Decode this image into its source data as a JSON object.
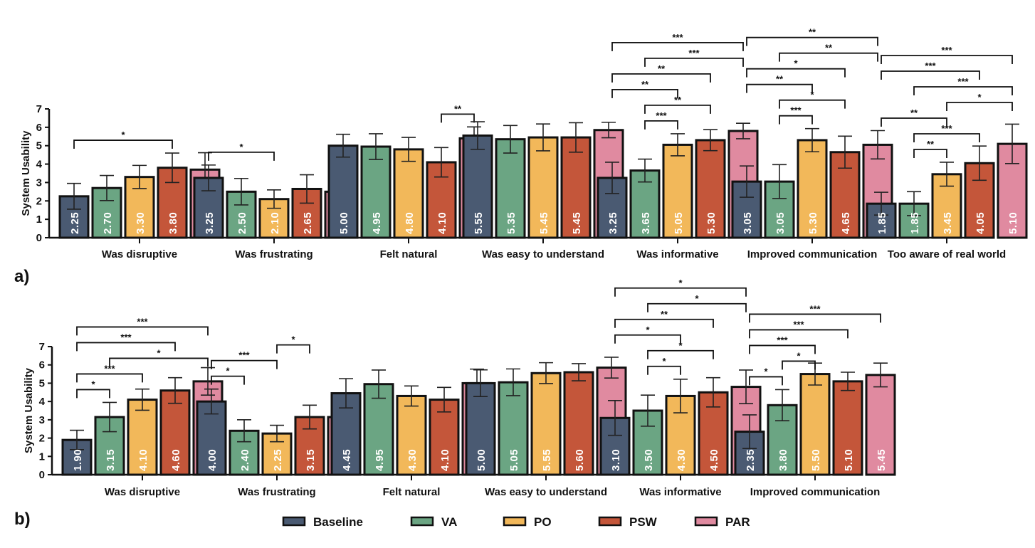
{
  "colors": {
    "Baseline": "#4a5a72",
    "VA": "#6ba583",
    "PO": "#f2b85a",
    "PSW": "#c4563a",
    "PAR": "#e08aa0"
  },
  "legend": [
    "Baseline",
    "VA",
    "PO",
    "PSW",
    "PAR"
  ],
  "chart_data": [
    {
      "type": "bar",
      "panel_label": "a)",
      "title": "",
      "xlabel": "",
      "ylabel": "System Usability",
      "ylim": [
        0,
        7
      ],
      "yticks": [
        "0",
        "1",
        "2",
        "3",
        "4",
        "5",
        "6",
        "7"
      ],
      "categories": [
        "Was disruptive",
        "Was frustrating",
        "Felt natural",
        "Was easy to understand",
        "Was informative",
        "Improved communication",
        "Too aware of real world"
      ],
      "series": [
        {
          "name": "Baseline",
          "values": [
            2.25,
            3.25,
            5.0,
            5.55,
            3.25,
            3.05,
            1.85
          ],
          "errors": [
            0.7,
            0.7,
            0.62,
            0.75,
            0.85,
            0.85,
            0.62
          ]
        },
        {
          "name": "VA",
          "values": [
            2.7,
            2.5,
            4.95,
            5.35,
            3.65,
            3.05,
            1.85
          ],
          "errors": [
            0.68,
            0.72,
            0.7,
            0.75,
            0.62,
            0.92,
            0.65
          ]
        },
        {
          "name": "PO",
          "values": [
            3.3,
            2.1,
            4.8,
            5.45,
            5.05,
            5.3,
            3.45
          ],
          "errors": [
            0.63,
            0.5,
            0.65,
            0.73,
            0.6,
            0.63,
            0.65
          ]
        },
        {
          "name": "PSW",
          "values": [
            3.8,
            2.65,
            4.1,
            5.45,
            5.3,
            4.65,
            4.05
          ],
          "errors": [
            0.8,
            0.77,
            0.8,
            0.8,
            0.57,
            0.87,
            0.93
          ]
        },
        {
          "name": "PAR",
          "values": [
            3.7,
            2.5,
            5.4,
            5.85,
            5.8,
            5.05,
            5.1
          ],
          "errors": [
            0.92,
            0.7,
            0.62,
            0.42,
            0.42,
            0.77,
            1.07
          ]
        }
      ],
      "value_labels": [
        [
          "2.25",
          "2.70",
          "3.30",
          "3.80",
          "3.70"
        ],
        [
          "3.25",
          "2.50",
          "2.10",
          "2.65",
          "2.50"
        ],
        [
          "5.00",
          "4.95",
          "4.80",
          "4.10",
          "5.40"
        ],
        [
          "5.55",
          "5.35",
          "5.45",
          "5.45",
          "5.85"
        ],
        [
          "3.25",
          "3.65",
          "5.05",
          "5.30",
          "5.80"
        ],
        [
          "3.05",
          "3.05",
          "5.30",
          "4.65",
          "5.05"
        ],
        [
          "1.85",
          "1.85",
          "3.45",
          "4.05",
          "5.10"
        ]
      ],
      "significance": [
        [
          {
            "from": "Baseline",
            "to": "PSW",
            "label": "*"
          }
        ],
        [
          {
            "from": "Baseline",
            "to": "PO",
            "label": "*"
          }
        ],
        [
          {
            "from": "PSW",
            "to": "PAR",
            "label": "**"
          }
        ],
        [],
        [
          {
            "from": "VA",
            "to": "PO",
            "label": "***"
          },
          {
            "from": "VA",
            "to": "PSW",
            "label": "**"
          },
          {
            "from": "Baseline",
            "to": "PO",
            "label": "**"
          },
          {
            "from": "Baseline",
            "to": "PSW",
            "label": "**"
          },
          {
            "from": "VA",
            "to": "PAR",
            "label": "***"
          },
          {
            "from": "Baseline",
            "to": "PAR",
            "label": "***"
          }
        ],
        [
          {
            "from": "VA",
            "to": "PO",
            "label": "***"
          },
          {
            "from": "VA",
            "to": "PSW",
            "label": "*"
          },
          {
            "from": "Baseline",
            "to": "PO",
            "label": "**"
          },
          {
            "from": "Baseline",
            "to": "PSW",
            "label": "*"
          },
          {
            "from": "VA",
            "to": "PAR",
            "label": "**"
          },
          {
            "from": "Baseline",
            "to": "PAR",
            "label": "**"
          }
        ],
        [
          {
            "from": "VA",
            "to": "PO",
            "label": "**"
          },
          {
            "from": "VA",
            "to": "PSW",
            "label": "***"
          },
          {
            "from": "Baseline",
            "to": "PO",
            "label": "**"
          },
          {
            "from": "PO",
            "to": "PAR",
            "label": "*"
          },
          {
            "from": "VA",
            "to": "PAR",
            "label": "***"
          },
          {
            "from": "Baseline",
            "to": "PSW",
            "label": "***"
          },
          {
            "from": "Baseline",
            "to": "PAR",
            "label": "***"
          }
        ]
      ]
    },
    {
      "type": "bar",
      "panel_label": "b)",
      "title": "",
      "xlabel": "",
      "ylabel": "System Usability",
      "ylim": [
        0,
        7
      ],
      "yticks": [
        "0",
        "1",
        "2",
        "3",
        "4",
        "5",
        "6",
        "7"
      ],
      "categories": [
        "Was disruptive",
        "Was frustrating",
        "Felt natural",
        "Was easy to understand",
        "Was informative",
        "Improved communication"
      ],
      "series": [
        {
          "name": "Baseline",
          "values": [
            1.9,
            4.0,
            4.45,
            5.0,
            3.1,
            2.35
          ],
          "errors": [
            0.53,
            0.68,
            0.8,
            0.73,
            0.95,
            0.92
          ]
        },
        {
          "name": "VA",
          "values": [
            3.15,
            2.4,
            4.95,
            5.05,
            3.5,
            3.8
          ],
          "errors": [
            0.8,
            0.6,
            0.77,
            0.73,
            0.85,
            0.85
          ]
        },
        {
          "name": "PO",
          "values": [
            4.1,
            2.25,
            4.3,
            5.55,
            4.3,
            5.5
          ],
          "errors": [
            0.58,
            0.45,
            0.55,
            0.57,
            0.92,
            0.6
          ]
        },
        {
          "name": "PSW",
          "values": [
            4.6,
            3.15,
            4.1,
            5.6,
            4.5,
            5.1
          ],
          "errors": [
            0.7,
            0.65,
            0.67,
            0.47,
            0.8,
            0.5
          ]
        },
        {
          "name": "PAR",
          "values": [
            5.1,
            3.15,
            5.0,
            5.85,
            4.8,
            5.45
          ],
          "errors": [
            0.75,
            0.85,
            0.77,
            0.57,
            0.92,
            0.65
          ]
        }
      ],
      "value_labels": [
        [
          "1.90",
          "3.15",
          "4.10",
          "4.60",
          "5.10"
        ],
        [
          "4.00",
          "2.40",
          "2.25",
          "3.15",
          "3.15"
        ],
        [
          "4.45",
          "4.95",
          "4.30",
          "4.10",
          "5.00"
        ],
        [
          "5.00",
          "5.05",
          "5.55",
          "5.60",
          "5.85"
        ],
        [
          "3.10",
          "3.50",
          "4.30",
          "4.50",
          "4.80"
        ],
        [
          "2.35",
          "3.80",
          "5.50",
          "5.10",
          "5.45"
        ]
      ],
      "significance": [
        [
          {
            "from": "Baseline",
            "to": "VA",
            "label": "*"
          },
          {
            "from": "Baseline",
            "to": "PO",
            "label": "***"
          },
          {
            "from": "VA",
            "to": "PAR",
            "label": "*"
          },
          {
            "from": "Baseline",
            "to": "PSW",
            "label": "***"
          },
          {
            "from": "Baseline",
            "to": "PAR",
            "label": "***"
          }
        ],
        [
          {
            "from": "Baseline",
            "to": "VA",
            "label": "*"
          },
          {
            "from": "Baseline",
            "to": "PO",
            "label": "***"
          },
          {
            "from": "PO",
            "to": "PSW",
            "label": "*"
          }
        ],
        [],
        [],
        [
          {
            "from": "VA",
            "to": "PO",
            "label": "*"
          },
          {
            "from": "VA",
            "to": "PSW",
            "label": "*"
          },
          {
            "from": "Baseline",
            "to": "PO",
            "label": "*"
          },
          {
            "from": "Baseline",
            "to": "PSW",
            "label": "**"
          },
          {
            "from": "VA",
            "to": "PAR",
            "label": "*"
          },
          {
            "from": "Baseline",
            "to": "PAR",
            "label": "*"
          }
        ],
        [
          {
            "from": "Baseline",
            "to": "VA",
            "label": "*"
          },
          {
            "from": "VA",
            "to": "PO",
            "label": "*"
          },
          {
            "from": "Baseline",
            "to": "PO",
            "label": "***"
          },
          {
            "from": "Baseline",
            "to": "PSW",
            "label": "***"
          },
          {
            "from": "Baseline",
            "to": "PAR",
            "label": "***"
          }
        ]
      ]
    }
  ]
}
